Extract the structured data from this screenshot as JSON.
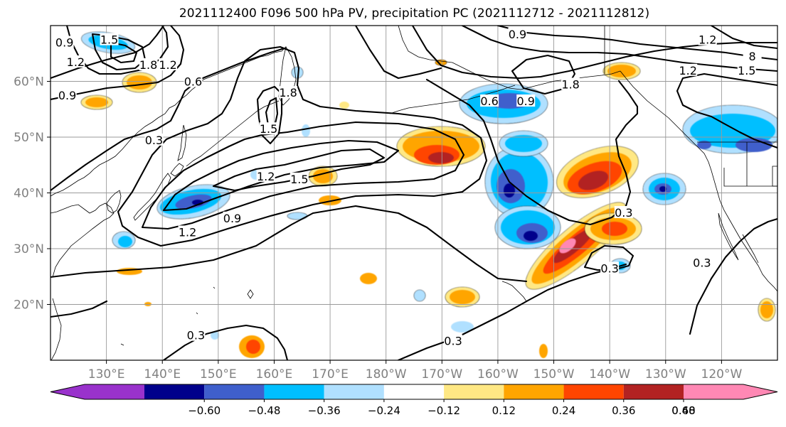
{
  "title": "2021112400 F096 500 hPa PV, precipitation PC (2021112712 - 2021112812)",
  "chart_data": {
    "type": "map",
    "map": {
      "lon_range": [
        120,
        250
      ],
      "lat_range": [
        10,
        70
      ],
      "lat_ticks": [
        {
          "value": 20,
          "label": "20°N"
        },
        {
          "value": 30,
          "label": "30°N"
        },
        {
          "value": 40,
          "label": "40°N"
        },
        {
          "value": 50,
          "label": "50°N"
        },
        {
          "value": 60,
          "label": "60°N"
        }
      ],
      "lon_ticks": [
        {
          "value": 130,
          "label": "130°E"
        },
        {
          "value": 140,
          "label": "140°E"
        },
        {
          "value": 150,
          "label": "150°E"
        },
        {
          "value": 160,
          "label": "160°E"
        },
        {
          "value": 170,
          "label": "170°E"
        },
        {
          "value": 180,
          "label": "180°W"
        },
        {
          "value": 190,
          "label": "170°W"
        },
        {
          "value": 200,
          "label": "160°W"
        },
        {
          "value": 210,
          "label": "150°W"
        },
        {
          "value": 220,
          "label": "140°W"
        },
        {
          "value": 230,
          "label": "130°W"
        },
        {
          "value": 240,
          "label": "120°W"
        }
      ],
      "grid": true
    },
    "colorbar": {
      "labels": [
        "−0.60",
        "−0.48",
        "−0.36",
        "−0.24",
        "−0.12",
        "0.12",
        "0.24",
        "0.36",
        "0.48",
        "0.60"
      ],
      "colors": [
        "#9932cc",
        "#00008b",
        "#3f5fcc",
        "#00bfff",
        "#b0e0ff",
        "#ffffff",
        "#ffe884",
        "#ffa500",
        "#ff4500",
        "#b22222",
        "#ff88b4"
      ],
      "extend": "both"
    },
    "pv_contour_labels": [
      "0.3",
      "0.6",
      "0.9",
      "1.2",
      "1.5",
      "1.8"
    ],
    "contour_label_positions": [
      {
        "text": "0.9",
        "lon": 122.5,
        "lat": 67.0
      },
      {
        "text": "1.5",
        "lon": 130.5,
        "lat": 67.5
      },
      {
        "text": "1.2",
        "lon": 124.5,
        "lat": 63.5
      },
      {
        "text": "1.8",
        "lon": 137.5,
        "lat": 63.0
      },
      {
        "text": "1.2",
        "lon": 141.0,
        "lat": 63.0
      },
      {
        "text": "0.9",
        "lon": 123.0,
        "lat": 57.5
      },
      {
        "text": "0.6",
        "lon": 145.5,
        "lat": 60.0
      },
      {
        "text": "1.8",
        "lon": 162.5,
        "lat": 58.0
      },
      {
        "text": "1.5",
        "lon": 159.0,
        "lat": 51.5
      },
      {
        "text": "0.3",
        "lon": 138.5,
        "lat": 49.5
      },
      {
        "text": "1.2",
        "lon": 158.5,
        "lat": 43.0
      },
      {
        "text": "1.5",
        "lon": 164.5,
        "lat": 42.5
      },
      {
        "text": "0.9",
        "lon": 152.5,
        "lat": 35.5
      },
      {
        "text": "1.2",
        "lon": 144.5,
        "lat": 33.0
      },
      {
        "text": "0.9",
        "lon": 203.5,
        "lat": 68.5
      },
      {
        "text": "1.2",
        "lon": 237.5,
        "lat": 67.5
      },
      {
        "text": "8",
        "lon": 245.5,
        "lat": 64.5
      },
      {
        "text": "1.2",
        "lon": 234.0,
        "lat": 62.0
      },
      {
        "text": "1.5",
        "lon": 244.5,
        "lat": 62.0
      },
      {
        "text": "1.8",
        "lon": 213.0,
        "lat": 59.5
      },
      {
        "text": "0.6",
        "lon": 198.5,
        "lat": 56.5
      },
      {
        "text": "0.9",
        "lon": 205.0,
        "lat": 56.5
      },
      {
        "text": "0.3",
        "lon": 222.5,
        "lat": 36.5
      },
      {
        "text": "0.3",
        "lon": 220.0,
        "lat": 26.5
      },
      {
        "text": "0.3",
        "lon": 236.5,
        "lat": 27.5
      },
      {
        "text": "0.3",
        "lon": 192.0,
        "lat": 13.5
      },
      {
        "text": "0.3",
        "lon": 146.0,
        "lat": 14.5
      }
    ]
  }
}
